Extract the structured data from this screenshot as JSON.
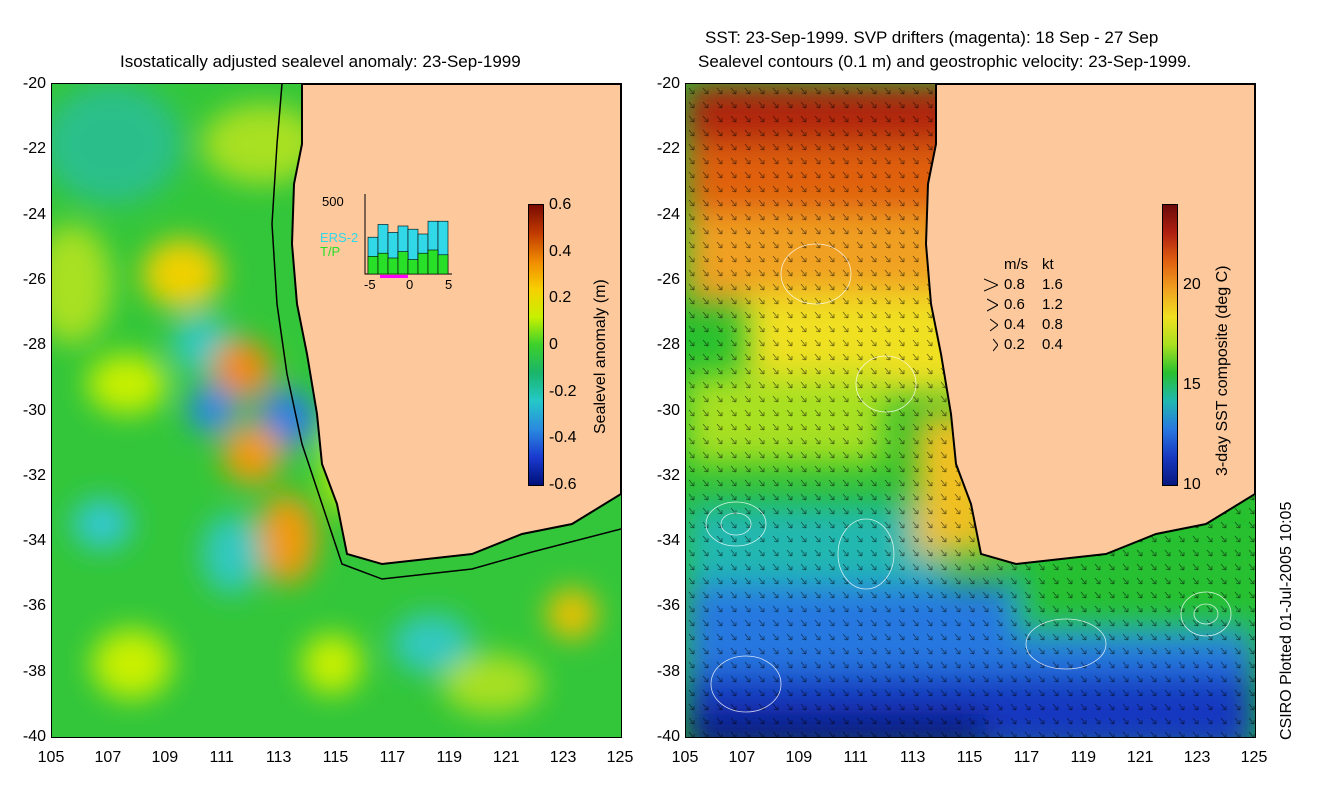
{
  "left_panel": {
    "title": "Isostatically adjusted sealevel anomaly: 23-Sep-1999",
    "colorbar_label": "Sealevel anomaly (m)",
    "colorbar_ticks": [
      "0.6",
      "0.4",
      "0.2",
      "0",
      "-0.2",
      "-0.4",
      "-0.6"
    ],
    "colorbar_stops": [
      "#7a0a00",
      "#c03a00",
      "#f08a00",
      "#f7d000",
      "#c8f000",
      "#3cd02c",
      "#1ab56a",
      "#24c8c8",
      "#2a8ae0",
      "#1a3ad0",
      "#00107a"
    ],
    "inset": {
      "ymax_label": "500",
      "series_labels": [
        "ERS-2",
        "T/P"
      ],
      "series_colors": [
        "#30d8e8",
        "#28e028"
      ],
      "x_ticks": [
        "-5",
        "0",
        "5"
      ],
      "ers2_counts": [
        230,
        310,
        260,
        300,
        280,
        250,
        330,
        330
      ],
      "tp_counts": [
        110,
        130,
        100,
        140,
        90,
        130,
        150,
        120
      ]
    }
  },
  "right_panel": {
    "title_line1": "SST: 23-Sep-1999. SVP drifters (magenta): 18 Sep - 27 Sep",
    "title_line2": "Sealevel contours (0.1 m) and geostrophic velocity: 23-Sep-1999.",
    "colorbar_label": "3-day SST composite (deg C)",
    "colorbar_ticks": [
      "20",
      "15",
      "10"
    ],
    "colorbar_stops": [
      "#6b0a0a",
      "#b02010",
      "#e06010",
      "#f0a020",
      "#f0e020",
      "#a8e020",
      "#28c030",
      "#20b8b0",
      "#2878e0",
      "#1838c0",
      "#081880"
    ],
    "velocity_legend": {
      "header_ms": "m/s",
      "header_kt": "kt",
      "rows": [
        {
          "ms": "0.8",
          "kt": "1.6"
        },
        {
          "ms": "0.6",
          "kt": "1.2"
        },
        {
          "ms": "0.4",
          "kt": "0.8"
        },
        {
          "ms": "0.2",
          "kt": "0.4"
        }
      ]
    }
  },
  "axes": {
    "y_ticks": [
      "-20",
      "-22",
      "-24",
      "-26",
      "-28",
      "-30",
      "-32",
      "-34",
      "-36",
      "-38",
      "-40"
    ],
    "x_ticks": [
      "105",
      "107",
      "109",
      "111",
      "113",
      "115",
      "117",
      "119",
      "121",
      "123",
      "125"
    ]
  },
  "footer": "CSIRO Plotted 01-Jul-2005 10:05",
  "colors": {
    "land": "#fdc89b",
    "coast": "#000000"
  }
}
